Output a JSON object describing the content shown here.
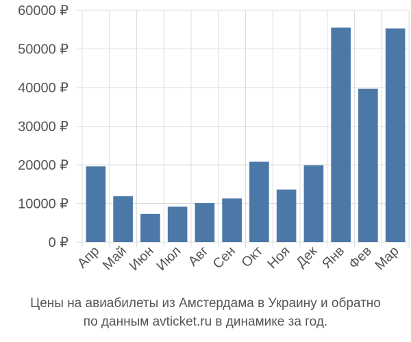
{
  "chart_data": {
    "type": "bar",
    "categories": [
      "Апр",
      "Май",
      "Июн",
      "Июл",
      "Авг",
      "Сен",
      "Окт",
      "Ноя",
      "Дек",
      "Янв",
      "Фев",
      "Мар"
    ],
    "values": [
      19600,
      11900,
      7300,
      9200,
      10100,
      11300,
      20800,
      13600,
      19900,
      55500,
      39700,
      55300
    ],
    "ylim": [
      0,
      60000
    ],
    "yticks": [
      0,
      10000,
      20000,
      30000,
      40000,
      50000,
      60000
    ],
    "ytick_labels": [
      "0 ₽",
      "10000 ₽",
      "20000 ₽",
      "30000 ₽",
      "40000 ₽",
      "50000 ₽",
      "60000 ₽"
    ],
    "bar_color": "#4c78a8",
    "grid": true,
    "grid_color": "#dddddd"
  },
  "caption": {
    "line1": "Цены на авиабилеты из Амстердама в Украину и обратно",
    "line2": "по данным avticket.ru в динамике за год."
  }
}
